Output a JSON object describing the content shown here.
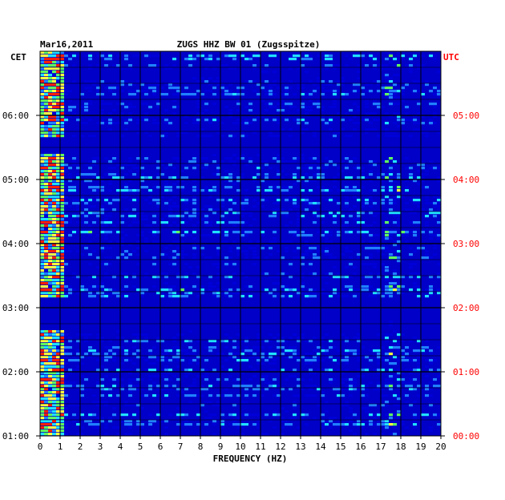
{
  "chart_data": {
    "type": "heatmap",
    "date": "Mar16,2011",
    "title": "ZUGS HHZ BW 01 (Zugsspitze)",
    "xlabel": "FREQUENCY (HZ)",
    "x_ticks": [
      "0",
      "1",
      "2",
      "3",
      "4",
      "5",
      "6",
      "7",
      "8",
      "9",
      "10",
      "11",
      "12",
      "13",
      "14",
      "15",
      "16",
      "17",
      "18",
      "19",
      "20"
    ],
    "xlim": [
      0,
      20
    ],
    "left_axis": {
      "label": "CET",
      "ticks": [
        "06:00",
        "05:00",
        "04:00",
        "03:00",
        "02:00",
        "01:00"
      ]
    },
    "right_axis": {
      "label": "UTC",
      "ticks": [
        "05:00",
        "04:00",
        "03:00",
        "02:00",
        "01:00",
        "00:00"
      ]
    },
    "time_range_cet": [
      "01:00",
      "07:00"
    ],
    "grid": true,
    "colors": {
      "background": "#0000c8",
      "low": "#0000d8",
      "mid": "#2080ff",
      "high": "#20e0ff",
      "peak_green": "#60ff60",
      "peak_yellow": "#ffff40",
      "peak_red": "#ff2000",
      "utc_label": "#ff0000",
      "grid": "#000000"
    },
    "features": {
      "dominant_energy_band_hz": [
        0,
        1
      ],
      "narrow_line_hz": [
        17.3,
        17.9
      ],
      "quiet_bands_cet": [
        [
          "02:40",
          "03:10"
        ],
        [
          "05:25",
          "05:40"
        ]
      ]
    }
  }
}
